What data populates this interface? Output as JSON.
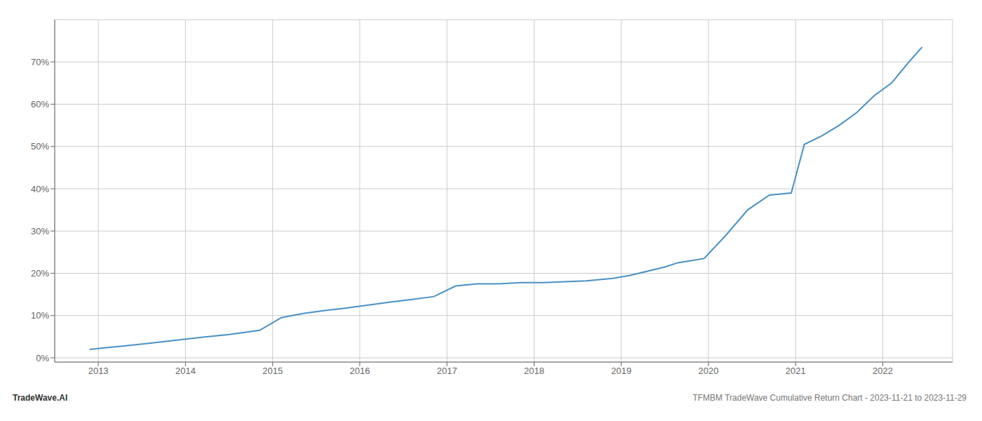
{
  "chart_data": {
    "type": "line",
    "title": "TFMBM TradeWave Cumulative Return Chart - 2023-11-21 to 2023-11-29",
    "annotations": [
      "TradeWave.AI"
    ],
    "color": "#4a90c4",
    "grid": true,
    "x": [
      2012.9,
      2013.05,
      2013.3,
      2013.6,
      2013.9,
      2014.2,
      2014.5,
      2014.85,
      2015.1,
      2015.35,
      2015.6,
      2015.85,
      2016.1,
      2016.35,
      2016.6,
      2016.85,
      2017.1,
      2017.35,
      2017.6,
      2017.85,
      2018.1,
      2018.35,
      2018.6,
      2018.75,
      2018.9,
      2019.1,
      2019.3,
      2019.5,
      2019.65,
      2019.8,
      2019.95,
      2020.2,
      2020.45,
      2020.7,
      2020.95,
      2021.1,
      2021.3,
      2021.5,
      2021.7,
      2021.9,
      2022.1,
      2022.3,
      2022.45
    ],
    "values": [
      2.0,
      2.3,
      2.8,
      3.5,
      4.2,
      4.9,
      5.5,
      6.5,
      9.5,
      10.5,
      11.2,
      11.8,
      12.5,
      13.2,
      13.8,
      14.5,
      17.0,
      17.5,
      17.5,
      17.8,
      17.8,
      18.0,
      18.2,
      18.5,
      18.8,
      19.5,
      20.5,
      21.5,
      22.5,
      23.0,
      23.5,
      29.0,
      35.0,
      38.5,
      39.0,
      50.5,
      52.5,
      55.0,
      58.0,
      62.0,
      65.0,
      70.0,
      73.5
    ],
    "xlim": [
      2012.5,
      2022.8
    ],
    "xticks": [
      2013,
      2014,
      2015,
      2016,
      2017,
      2018,
      2019,
      2020,
      2021,
      2022
    ],
    "ylim": [
      -1,
      80
    ],
    "yticks": [
      {
        "value": 0,
        "label": "0%"
      },
      {
        "value": 10,
        "label": "10%"
      },
      {
        "value": 20,
        "label": "20%"
      },
      {
        "value": 30,
        "label": "30%"
      },
      {
        "value": 40,
        "label": "40%"
      },
      {
        "value": 50,
        "label": "50%"
      },
      {
        "value": 60,
        "label": "60%"
      },
      {
        "value": 70,
        "label": "70%"
      }
    ]
  }
}
